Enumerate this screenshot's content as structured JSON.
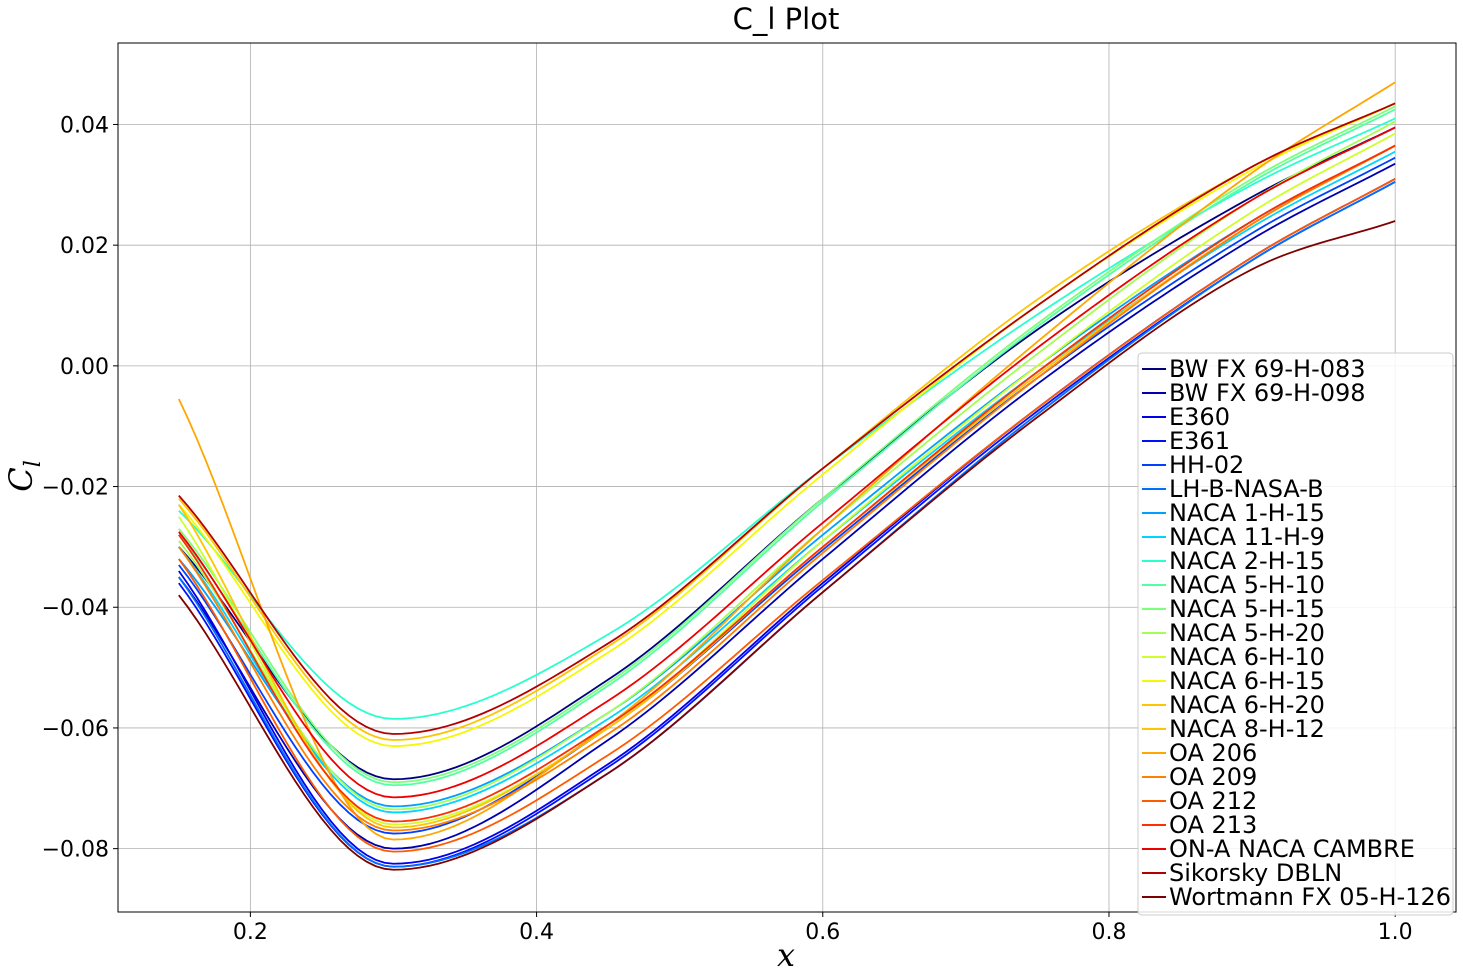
{
  "chart_data": {
    "type": "line",
    "title": "C_l Plot",
    "xlabel": "x",
    "ylabel": "C_l",
    "xlim": [
      0.1075,
      1.0425
    ],
    "ylim": [
      -0.0905,
      0.0535
    ],
    "xticks": [
      0.2,
      0.4,
      0.6,
      0.8,
      1.0
    ],
    "xtick_labels": [
      "0.2",
      "0.4",
      "0.6",
      "0.8",
      "1.0"
    ],
    "yticks": [
      -0.08,
      -0.06,
      -0.04,
      -0.02,
      0.0,
      0.02,
      0.04
    ],
    "ytick_labels": [
      "−0.08",
      "−0.06",
      "−0.04",
      "−0.02",
      "0.00",
      "0.02",
      "0.04"
    ],
    "grid": true,
    "legend_position": "lower-right",
    "x": [
      0.15,
      0.3,
      0.45,
      0.6,
      0.75,
      0.9,
      1.0
    ],
    "series": [
      {
        "name": "BW FX 69-H-083",
        "color": "#00007f",
        "values": [
          -0.03,
          -0.0685,
          -0.052,
          -0.022,
          0.006,
          0.028,
          0.0395
        ]
      },
      {
        "name": "BW FX 69-H-098",
        "color": "#0000b2",
        "values": [
          -0.035,
          -0.08,
          -0.062,
          -0.032,
          -0.003,
          0.021,
          0.0335
        ]
      },
      {
        "name": "E360",
        "color": "#0000ee",
        "values": [
          -0.034,
          -0.0825,
          -0.066,
          -0.036,
          -0.007,
          0.018,
          0.031
        ]
      },
      {
        "name": "E361",
        "color": "#0010ff",
        "values": [
          -0.036,
          -0.083,
          -0.0665,
          -0.0365,
          -0.0075,
          0.0175,
          0.0305
        ]
      },
      {
        "name": "HH-02",
        "color": "#0040ff",
        "values": [
          -0.033,
          -0.0775,
          -0.06,
          -0.0305,
          -0.002,
          0.022,
          0.0345
        ]
      },
      {
        "name": "LH-B-NASA-B",
        "color": "#0070ff",
        "values": [
          -0.035,
          -0.083,
          -0.0675,
          -0.0375,
          -0.008,
          0.0175,
          0.0305
        ]
      },
      {
        "name": "NACA 1-H-15",
        "color": "#00a0ff",
        "values": [
          -0.032,
          -0.073,
          -0.0575,
          -0.028,
          0.0,
          0.024,
          0.0365
        ]
      },
      {
        "name": "NACA 11-H-9",
        "color": "#00d4ff",
        "values": [
          -0.03,
          -0.074,
          -0.0585,
          -0.029,
          -0.001,
          0.023,
          0.0355
        ]
      },
      {
        "name": "NACA 2-H-15",
        "color": "#29ffce",
        "values": [
          -0.024,
          -0.0585,
          -0.0445,
          -0.017,
          0.0085,
          0.03,
          0.041
        ]
      },
      {
        "name": "NACA 5-H-10",
        "color": "#53ffa4",
        "values": [
          -0.028,
          -0.0695,
          -0.053,
          -0.0225,
          0.0065,
          0.0305,
          0.0425
        ]
      },
      {
        "name": "NACA 5-H-15",
        "color": "#7dff7a",
        "values": [
          -0.027,
          -0.069,
          -0.0525,
          -0.022,
          0.007,
          0.031,
          0.043
        ]
      },
      {
        "name": "NACA 5-H-20",
        "color": "#a4ff53",
        "values": [
          -0.029,
          -0.0735,
          -0.0575,
          -0.027,
          0.002,
          0.0275,
          0.0405
        ]
      },
      {
        "name": "NACA 6-H-10",
        "color": "#ceff29",
        "values": [
          -0.025,
          -0.076,
          -0.06,
          -0.029,
          0.0,
          0.0255,
          0.0385
        ]
      },
      {
        "name": "NACA 6-H-15",
        "color": "#f4f802",
        "values": [
          -0.023,
          -0.063,
          -0.0475,
          -0.018,
          0.01,
          0.0325,
          0.0435
        ]
      },
      {
        "name": "NACA 6-H-20",
        "color": "#ffc400",
        "values": [
          -0.022,
          -0.062,
          -0.0465,
          -0.017,
          0.011,
          0.033,
          0.0435
        ]
      },
      {
        "name": "NACA 8-H-12",
        "color": "#ffc400",
        "values": [
          -0.023,
          -0.0765,
          -0.06,
          -0.03,
          -0.0015,
          0.0235,
          0.0365
        ]
      },
      {
        "name": "OA 206",
        "color": "#ffa700",
        "values": [
          -0.0055,
          -0.0785,
          -0.0595,
          -0.027,
          0.004,
          0.032,
          0.047
        ]
      },
      {
        "name": "OA 209",
        "color": "#ff7f00",
        "values": [
          -0.03,
          -0.077,
          -0.061,
          -0.031,
          -0.002,
          0.0235,
          0.0365
        ]
      },
      {
        "name": "OA 212",
        "color": "#ff5a00",
        "values": [
          -0.032,
          -0.0805,
          -0.0645,
          -0.0355,
          -0.007,
          0.018,
          0.031
        ]
      },
      {
        "name": "OA 213",
        "color": "#ff3000",
        "values": [
          -0.028,
          -0.0755,
          -0.0595,
          -0.03,
          -0.001,
          0.024,
          0.0365
        ]
      },
      {
        "name": "ON-A NACA CAMBRE",
        "color": "#ee0000",
        "values": [
          -0.0275,
          -0.0715,
          -0.0555,
          -0.026,
          0.003,
          0.0275,
          0.0395
        ]
      },
      {
        "name": "Sikorsky DBLN",
        "color": "#b20000",
        "values": [
          -0.0215,
          -0.061,
          -0.046,
          -0.017,
          0.01,
          0.033,
          0.0435
        ]
      },
      {
        "name": "Wortmann FX 05-H-126",
        "color": "#7f0000",
        "values": [
          -0.038,
          -0.0835,
          -0.0675,
          -0.0375,
          -0.0085,
          0.016,
          0.024
        ]
      }
    ]
  }
}
